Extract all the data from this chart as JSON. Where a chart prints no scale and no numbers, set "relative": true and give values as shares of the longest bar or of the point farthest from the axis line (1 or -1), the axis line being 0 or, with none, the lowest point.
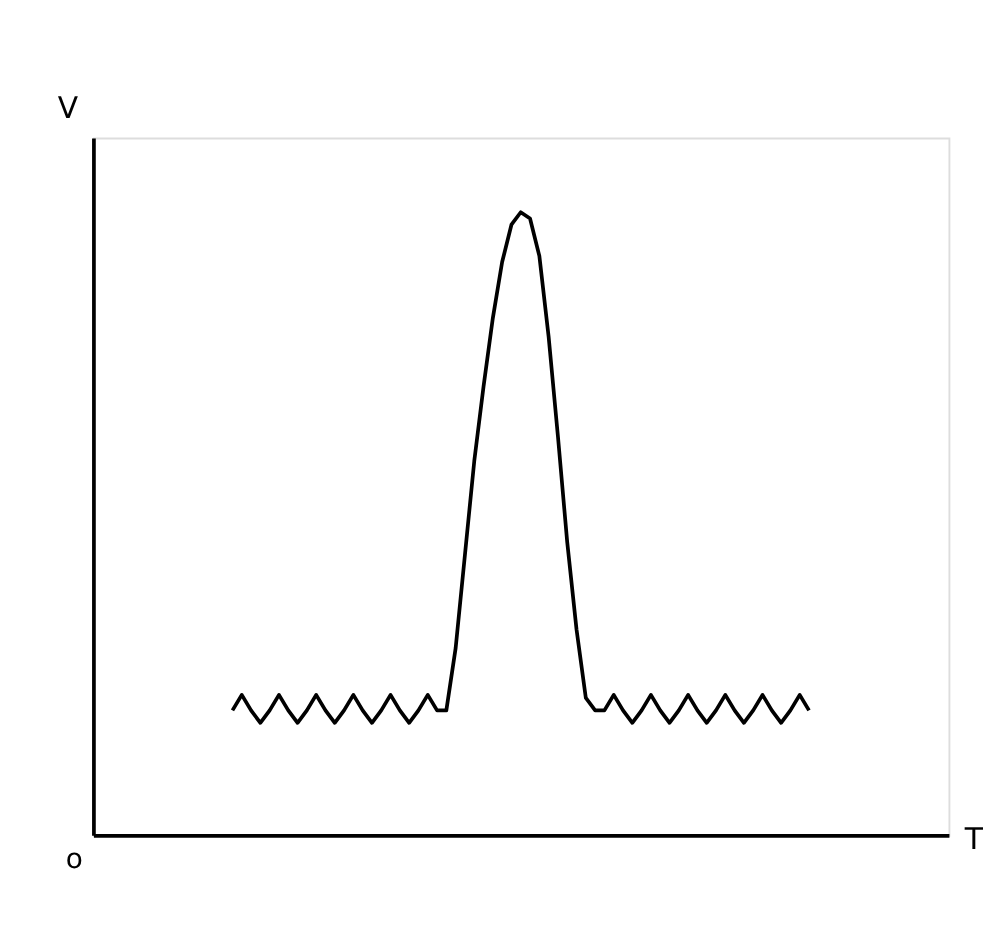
{
  "chart_data": {
    "type": "line",
    "relative": true,
    "xlabel": "T",
    "ylabel": "V",
    "annotations": [
      "o"
    ],
    "grid": false,
    "tick_labels": false,
    "marker": "none",
    "line_style": "solid",
    "categories": [
      null,
      null,
      null,
      null,
      null,
      null,
      null,
      null,
      null,
      null,
      null,
      null,
      null,
      null,
      null,
      null,
      null,
      null,
      null,
      null,
      null,
      null,
      null,
      null,
      null,
      null,
      null,
      null,
      null,
      null,
      null,
      null,
      null,
      null,
      null,
      null,
      null,
      null,
      null,
      null,
      null,
      null,
      null,
      null,
      null,
      null,
      null,
      null,
      null,
      null,
      null,
      null,
      null,
      null,
      null,
      null,
      null,
      null,
      null,
      null,
      null,
      null,
      null,
      null,
      null,
      null,
      null,
      null,
      null,
      null,
      null,
      null,
      null,
      null,
      null,
      null,
      null,
      null,
      null,
      null,
      null,
      null,
      null,
      null,
      null,
      null,
      null,
      null,
      null,
      null,
      null,
      null,
      null
    ],
    "series": [
      {
        "color": "#000000",
        "values": [
          null,
          null,
          null,
          null,
          null,
          null,
          null,
          null,
          null,
          null,
          null,
          null,
          null,
          null,
          null,
          0.2,
          0.225,
          0.2,
          0.18,
          0.2,
          0.225,
          0.2,
          0.18,
          0.2,
          0.225,
          0.2,
          0.18,
          0.2,
          0.225,
          0.2,
          0.18,
          0.2,
          0.225,
          0.2,
          0.18,
          0.2,
          0.225,
          0.2,
          0.2,
          0.3,
          0.45,
          0.6,
          0.72,
          0.83,
          0.92,
          0.98,
          1.0,
          0.99,
          0.93,
          0.8,
          0.64,
          0.47,
          0.33,
          0.22,
          0.2,
          0.2,
          0.225,
          0.2,
          0.18,
          0.2,
          0.225,
          0.2,
          0.18,
          0.2,
          0.225,
          0.2,
          0.18,
          0.2,
          0.225,
          0.2,
          0.18,
          0.2,
          0.225,
          0.2,
          0.18,
          0.2,
          0.225,
          0.2,
          null,
          null,
          null,
          null,
          null,
          null,
          null,
          null,
          null,
          null,
          null,
          null,
          null,
          null,
          null
        ]
      }
    ]
  }
}
